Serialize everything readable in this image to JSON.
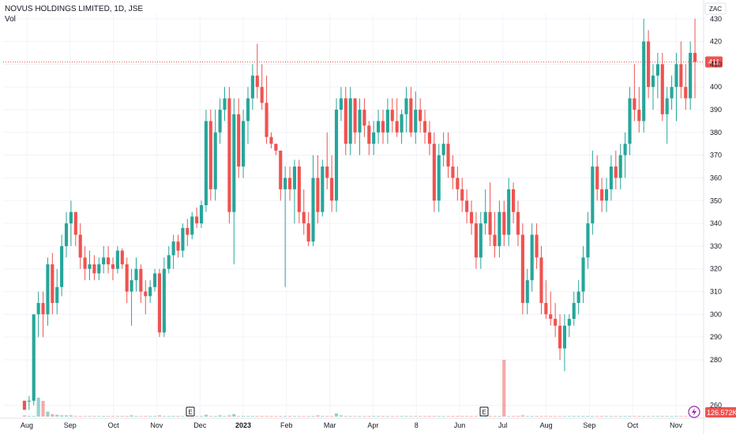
{
  "legend": {
    "symbol": "NOVUS HOLDINGS LIMITED, 1D, JSE",
    "volume_label": "Vol"
  },
  "colors": {
    "up": "#26a69a",
    "down": "#ef5350",
    "grid": "#f0f3fa",
    "last_price_line": "#ef5350",
    "volume_badge": "#ef5350",
    "lightning_icon": "#9c27b0"
  },
  "chart_data": {
    "type": "candlestick",
    "currency": "ZAC",
    "y_axis": {
      "min": 255,
      "max": 432,
      "ticks": [
        430,
        420,
        410,
        400,
        390,
        380,
        370,
        360,
        350,
        340,
        330,
        320,
        310,
        300,
        290,
        280,
        260
      ]
    },
    "x_axis": {
      "labels": [
        {
          "label": "Aug",
          "bold": false
        },
        {
          "label": "Sep",
          "bold": false
        },
        {
          "label": "Oct",
          "bold": false
        },
        {
          "label": "Nov",
          "bold": false
        },
        {
          "label": "Dec",
          "bold": false
        },
        {
          "label": "2023",
          "bold": true
        },
        {
          "label": "Feb",
          "bold": false
        },
        {
          "label": "Mar",
          "bold": false
        },
        {
          "label": "Apr",
          "bold": false
        },
        {
          "label": "8",
          "bold": false
        },
        {
          "label": "Jun",
          "bold": false
        },
        {
          "label": "Jul",
          "bold": false
        },
        {
          "label": "Aug",
          "bold": false
        },
        {
          "label": "Sep",
          "bold": false
        },
        {
          "label": "Oct",
          "bold": false
        },
        {
          "label": "Nov",
          "bold": false
        }
      ]
    },
    "last_price": 411,
    "volume_last": "126.572K",
    "earnings_markers": [
      "E",
      "E"
    ],
    "candles": [
      [
        262,
        262,
        258,
        258
      ],
      [
        262,
        264,
        258,
        262
      ],
      [
        262,
        300,
        260,
        300
      ],
      [
        300,
        310,
        290,
        305
      ],
      [
        305,
        310,
        290,
        300
      ],
      [
        300,
        325,
        295,
        322
      ],
      [
        322,
        327,
        300,
        305
      ],
      [
        305,
        320,
        300,
        312
      ],
      [
        312,
        335,
        308,
        330
      ],
      [
        330,
        345,
        325,
        340
      ],
      [
        340,
        350,
        330,
        345
      ],
      [
        345,
        345,
        330,
        335
      ],
      [
        335,
        340,
        320,
        325
      ],
      [
        325,
        330,
        315,
        320
      ],
      [
        320,
        328,
        315,
        322
      ],
      [
        322,
        326,
        315,
        318
      ],
      [
        318,
        325,
        315,
        322
      ],
      [
        322,
        330,
        318,
        325
      ],
      [
        325,
        330,
        318,
        322
      ],
      [
        322,
        325,
        315,
        320
      ],
      [
        320,
        330,
        318,
        328
      ],
      [
        328,
        329,
        320,
        322
      ],
      [
        322,
        325,
        305,
        310
      ],
      [
        310,
        320,
        295,
        315
      ],
      [
        315,
        325,
        310,
        320
      ],
      [
        320,
        322,
        305,
        310
      ],
      [
        310,
        315,
        300,
        308
      ],
      [
        308,
        315,
        305,
        312
      ],
      [
        312,
        320,
        310,
        318
      ],
      [
        318,
        320,
        290,
        292
      ],
      [
        292,
        325,
        290,
        320
      ],
      [
        320,
        330,
        318,
        326
      ],
      [
        326,
        335,
        320,
        332
      ],
      [
        332,
        335,
        325,
        328
      ],
      [
        328,
        340,
        325,
        338
      ],
      [
        338,
        342,
        330,
        335
      ],
      [
        335,
        345,
        333,
        343
      ],
      [
        343,
        347,
        338,
        340
      ],
      [
        340,
        350,
        338,
        348
      ],
      [
        348,
        390,
        345,
        385
      ],
      [
        385,
        390,
        350,
        355
      ],
      [
        355,
        390,
        350,
        380
      ],
      [
        380,
        395,
        375,
        390
      ],
      [
        390,
        400,
        385,
        395
      ],
      [
        395,
        400,
        340,
        345
      ],
      [
        345,
        395,
        322,
        388
      ],
      [
        388,
        395,
        360,
        365
      ],
      [
        365,
        390,
        360,
        385
      ],
      [
        385,
        400,
        375,
        395
      ],
      [
        395,
        410,
        390,
        405
      ],
      [
        405,
        419,
        395,
        400
      ],
      [
        400,
        410,
        390,
        393
      ],
      [
        393,
        405,
        375,
        378
      ],
      [
        378,
        380,
        373,
        375
      ],
      [
        375,
        375,
        370,
        372
      ],
      [
        372,
        372,
        350,
        355
      ],
      [
        355,
        365,
        312,
        360
      ],
      [
        360,
        365,
        350,
        355
      ],
      [
        355,
        368,
        340,
        365
      ],
      [
        365,
        368,
        340,
        345
      ],
      [
        345,
        355,
        335,
        340
      ],
      [
        340,
        345,
        330,
        332
      ],
      [
        332,
        370,
        330,
        360
      ],
      [
        360,
        370,
        340,
        345
      ],
      [
        345,
        368,
        343,
        365
      ],
      [
        365,
        380,
        355,
        360
      ],
      [
        360,
        370,
        345,
        350
      ],
      [
        350,
        395,
        345,
        390
      ],
      [
        390,
        400,
        385,
        395
      ],
      [
        395,
        400,
        370,
        375
      ],
      [
        375,
        400,
        370,
        395
      ],
      [
        395,
        395,
        375,
        380
      ],
      [
        380,
        395,
        370,
        390
      ],
      [
        390,
        395,
        378,
        383
      ],
      [
        383,
        385,
        370,
        375
      ],
      [
        375,
        385,
        370,
        380
      ],
      [
        380,
        390,
        375,
        385
      ],
      [
        385,
        390,
        375,
        380
      ],
      [
        380,
        395,
        375,
        390
      ],
      [
        390,
        395,
        380,
        385
      ],
      [
        385,
        395,
        378,
        380
      ],
      [
        380,
        390,
        375,
        388
      ],
      [
        388,
        400,
        380,
        395
      ],
      [
        395,
        400,
        378,
        380
      ],
      [
        380,
        398,
        375,
        390
      ],
      [
        390,
        395,
        380,
        385
      ],
      [
        385,
        390,
        375,
        380
      ],
      [
        380,
        385,
        370,
        375
      ],
      [
        375,
        380,
        345,
        350
      ],
      [
        350,
        375,
        345,
        370
      ],
      [
        370,
        380,
        365,
        375
      ],
      [
        375,
        380,
        360,
        365
      ],
      [
        365,
        370,
        355,
        360
      ],
      [
        360,
        365,
        350,
        355
      ],
      [
        355,
        360,
        345,
        350
      ],
      [
        350,
        355,
        340,
        345
      ],
      [
        345,
        350,
        335,
        340
      ],
      [
        340,
        345,
        320,
        325
      ],
      [
        325,
        345,
        320,
        340
      ],
      [
        340,
        355,
        335,
        345
      ],
      [
        345,
        358,
        330,
        335
      ],
      [
        335,
        345,
        325,
        330
      ],
      [
        330,
        350,
        325,
        345
      ],
      [
        345,
        350,
        330,
        335
      ],
      [
        335,
        360,
        330,
        355
      ],
      [
        355,
        358,
        340,
        345
      ],
      [
        345,
        350,
        330,
        335
      ],
      [
        335,
        340,
        300,
        305
      ],
      [
        305,
        320,
        300,
        315
      ],
      [
        315,
        340,
        310,
        335
      ],
      [
        335,
        340,
        320,
        325
      ],
      [
        325,
        330,
        300,
        305
      ],
      [
        305,
        315,
        298,
        300
      ],
      [
        300,
        310,
        295,
        298
      ],
      [
        298,
        305,
        290,
        295
      ],
      [
        295,
        300,
        280,
        285
      ],
      [
        285,
        300,
        275,
        295
      ],
      [
        295,
        300,
        290,
        298
      ],
      [
        298,
        310,
        295,
        305
      ],
      [
        305,
        315,
        300,
        310
      ],
      [
        310,
        330,
        305,
        325
      ],
      [
        325,
        345,
        320,
        340
      ],
      [
        340,
        372,
        335,
        365
      ],
      [
        365,
        370,
        350,
        355
      ],
      [
        355,
        360,
        345,
        350
      ],
      [
        350,
        360,
        345,
        355
      ],
      [
        355,
        370,
        350,
        365
      ],
      [
        365,
        372,
        355,
        360
      ],
      [
        360,
        375,
        355,
        370
      ],
      [
        370,
        380,
        360,
        375
      ],
      [
        375,
        400,
        370,
        395
      ],
      [
        395,
        410,
        385,
        390
      ],
      [
        390,
        400,
        380,
        385
      ],
      [
        385,
        430,
        380,
        420
      ],
      [
        420,
        425,
        395,
        400
      ],
      [
        400,
        410,
        390,
        405
      ],
      [
        405,
        415,
        395,
        410
      ],
      [
        410,
        415,
        385,
        388
      ],
      [
        388,
        400,
        375,
        395
      ],
      [
        395,
        405,
        390,
        400
      ],
      [
        400,
        415,
        385,
        410
      ],
      [
        410,
        420,
        395,
        400
      ],
      [
        400,
        410,
        390,
        395
      ],
      [
        395,
        420,
        390,
        415
      ],
      [
        415,
        430,
        395,
        411
      ]
    ],
    "volumes": [
      2,
      1,
      1,
      30,
      25,
      8,
      4,
      3,
      2,
      2,
      2,
      1,
      1,
      1,
      1,
      1,
      1,
      1,
      1,
      1,
      1,
      1,
      1,
      2,
      1,
      1,
      1,
      1,
      1,
      2,
      1,
      1,
      1,
      1,
      1,
      1,
      1,
      1,
      1,
      3,
      1,
      1,
      2,
      1,
      2,
      4,
      1,
      1,
      1,
      1,
      1,
      1,
      1,
      1,
      1,
      1,
      1,
      1,
      1,
      1,
      1,
      1,
      1,
      2,
      1,
      1,
      1,
      5,
      2,
      1,
      1,
      1,
      1,
      1,
      1,
      1,
      1,
      1,
      1,
      1,
      1,
      1,
      1,
      1,
      1,
      1,
      1,
      1,
      1,
      1,
      1,
      1,
      1,
      1,
      1,
      1,
      1,
      1,
      1,
      1,
      1,
      1,
      1,
      90,
      1,
      1,
      1,
      2,
      1,
      1,
      1,
      1,
      1,
      1,
      1,
      1,
      1,
      1,
      1,
      1,
      1,
      1,
      1,
      1,
      1,
      1,
      1,
      1,
      1,
      1,
      1,
      1,
      1,
      1,
      1,
      1,
      1,
      1,
      1,
      1,
      1,
      1,
      1,
      1,
      1
    ],
    "volume_max": 100
  }
}
